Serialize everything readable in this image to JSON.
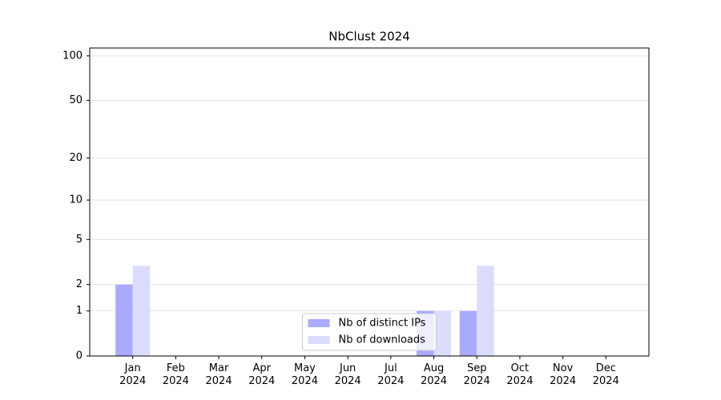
{
  "chart_data": {
    "type": "bar",
    "title": "NbClust 2024",
    "categories": [
      "Jan\n2024",
      "Feb\n2024",
      "Mar\n2024",
      "Apr\n2024",
      "May\n2024",
      "Jun\n2024",
      "Jul\n2024",
      "Aug\n2024",
      "Sep\n2024",
      "Oct\n2024",
      "Nov\n2024",
      "Dec\n2024"
    ],
    "series": [
      {
        "name": "Nb of distinct IPs",
        "color": "#aaaaff",
        "values": [
          2,
          0,
          0,
          0,
          0,
          0,
          0,
          1,
          1,
          0,
          0,
          0
        ]
      },
      {
        "name": "Nb of downloads",
        "color": "#dcdcfc",
        "values": [
          3,
          0,
          0,
          0,
          0,
          0,
          0,
          1,
          3,
          0,
          0,
          0
        ]
      }
    ],
    "y_scale": "log1p",
    "ylim": [
      0,
      113
    ],
    "yticks": [
      0,
      1,
      2,
      5,
      10,
      20,
      50,
      100
    ],
    "grid": true,
    "legend": "lower center"
  }
}
